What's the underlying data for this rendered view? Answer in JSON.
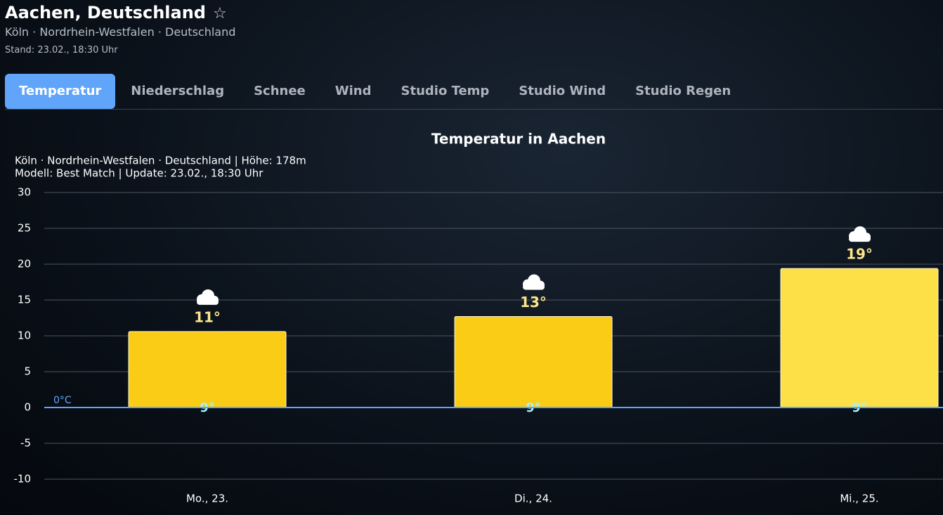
{
  "header": {
    "title": "Aachen, Deutschland",
    "star": "☆",
    "location": "Köln · Nordrhein-Westfalen · Deutschland",
    "updated": "Stand: 23.02., 18:30 Uhr"
  },
  "tabs": {
    "items": [
      "Temperatur",
      "Niederschlag",
      "Schnee",
      "Wind",
      "Studio Temp",
      "Studio Wind",
      "Studio Regen"
    ],
    "active": 0
  },
  "chart_data": {
    "type": "bar",
    "title": "Temperatur in Aachen",
    "subtitle": [
      "Köln · Nordrhein-Westfalen · Deutschland | Höhe: 178m",
      "Modell: Best Match | Update: 23.02., 18:30 Uhr"
    ],
    "categories": [
      "Mo., 23.",
      "Di., 24.",
      "Mi., 25."
    ],
    "values": [
      10.6,
      12.7,
      19.4
    ],
    "value_labels": [
      "11°",
      "13°",
      "19°"
    ],
    "low_labels": [
      "9°",
      "9°",
      "9°"
    ],
    "colors": [
      "#facc15",
      "#facc15",
      "#fde047"
    ],
    "zero_label": "0°C",
    "ylim": [
      -10,
      30
    ],
    "yticks": [
      30,
      25,
      20,
      15,
      10,
      5,
      0,
      -5,
      -10
    ],
    "grid": true
  }
}
